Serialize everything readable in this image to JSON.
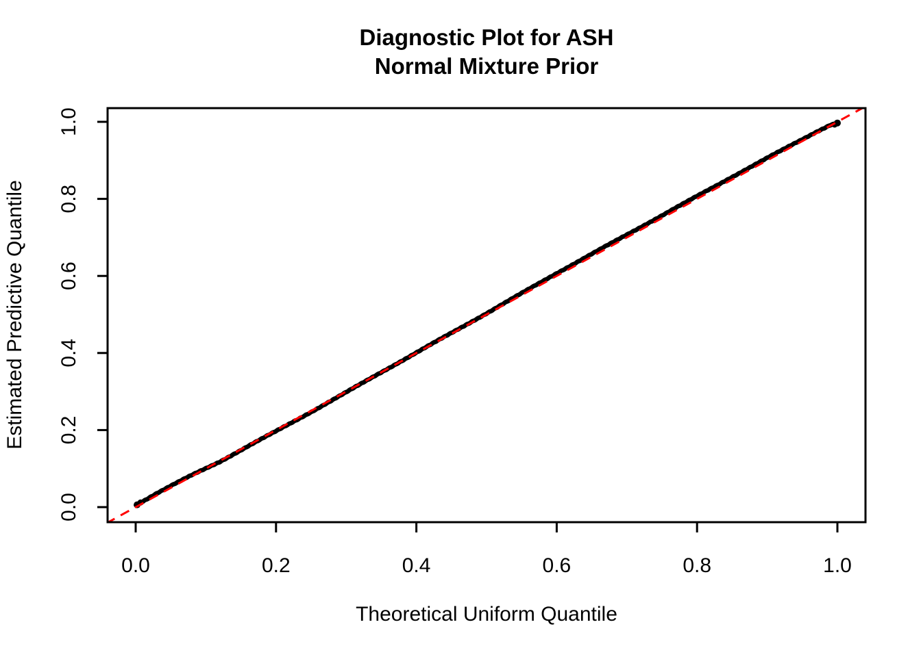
{
  "chart_data": {
    "type": "scatter",
    "title_line1": "Diagnostic Plot for ASH",
    "title_line2": "Normal Mixture Prior",
    "xlabel": "Theoretical Uniform Quantile",
    "ylabel": "Estimated Predictive Quantile",
    "xlim": [
      -0.042,
      1.042
    ],
    "ylim": [
      -0.042,
      1.042
    ],
    "x_ticks": [
      0.0,
      0.2,
      0.4,
      0.6,
      0.8,
      1.0
    ],
    "x_tick_labels": [
      "0.0",
      "0.2",
      "0.4",
      "0.6",
      "0.8",
      "1.0"
    ],
    "y_ticks": [
      0.0,
      0.2,
      0.4,
      0.6,
      0.8,
      1.0
    ],
    "y_tick_labels": [
      "0.0",
      "0.2",
      "0.4",
      "0.6",
      "0.8",
      "1.0"
    ],
    "grid": false,
    "legend": null,
    "colors": {
      "points": "#000000",
      "reference_line": "#ff0000",
      "axis": "#000000",
      "background": "#ffffff"
    },
    "n_points_estimate": 1000,
    "series": [
      {
        "name": "estimated-predictive-quantiles",
        "type": "scatter",
        "marker": "filled-circle",
        "color": "#000000",
        "points": [
          [
            0.0,
            0.006
          ],
          [
            0.01,
            0.015
          ],
          [
            0.03,
            0.036
          ],
          [
            0.05,
            0.055
          ],
          [
            0.08,
            0.083
          ],
          [
            0.12,
            0.118
          ],
          [
            0.16,
            0.158
          ],
          [
            0.2,
            0.197
          ],
          [
            0.25,
            0.247
          ],
          [
            0.3,
            0.298
          ],
          [
            0.35,
            0.35
          ],
          [
            0.4,
            0.401
          ],
          [
            0.45,
            0.452
          ],
          [
            0.5,
            0.503
          ],
          [
            0.55,
            0.555
          ],
          [
            0.6,
            0.607
          ],
          [
            0.65,
            0.657
          ],
          [
            0.7,
            0.707
          ],
          [
            0.75,
            0.757
          ],
          [
            0.8,
            0.807
          ],
          [
            0.85,
            0.857
          ],
          [
            0.9,
            0.906
          ],
          [
            0.94,
            0.945
          ],
          [
            0.97,
            0.974
          ],
          [
            0.99,
            0.992
          ],
          [
            1.0,
            0.997
          ]
        ]
      },
      {
        "name": "reference-line-y-equals-x",
        "type": "line",
        "style": "dashed",
        "color": "#ff0000",
        "from": [
          -0.042,
          -0.042
        ],
        "to": [
          1.042,
          1.042
        ]
      }
    ]
  }
}
